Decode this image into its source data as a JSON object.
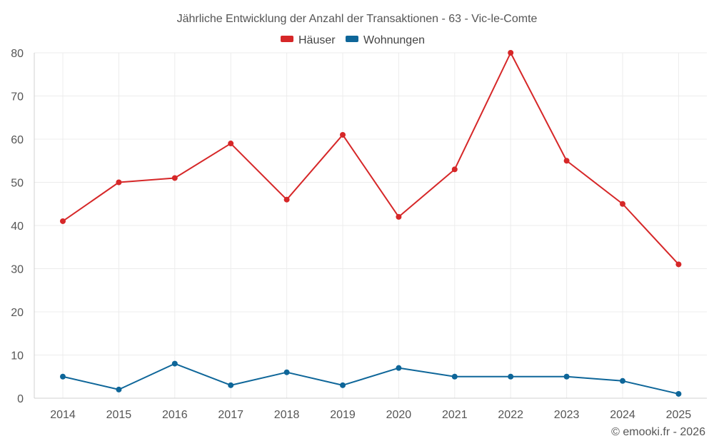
{
  "chart_data": {
    "type": "line",
    "title": "Jährliche Entwicklung der Anzahl der Transaktionen - 63 - Vic-le-Comte",
    "xlabel": "",
    "ylabel": "",
    "categories": [
      "2014",
      "2015",
      "2016",
      "2017",
      "2018",
      "2019",
      "2020",
      "2021",
      "2022",
      "2023",
      "2024",
      "2025"
    ],
    "ylim": [
      0,
      80
    ],
    "yticks": [
      0,
      10,
      20,
      30,
      40,
      50,
      60,
      70,
      80
    ],
    "grid": true,
    "legend_position": "top-center",
    "series": [
      {
        "name": "Häuser",
        "color": "#d62728",
        "values": [
          41,
          50,
          51,
          59,
          46,
          61,
          42,
          53,
          80,
          55,
          45,
          31
        ]
      },
      {
        "name": "Wohnungen",
        "color": "#0e6699",
        "values": [
          5,
          2,
          8,
          3,
          6,
          3,
          7,
          5,
          5,
          5,
          4,
          1
        ]
      }
    ]
  },
  "footer": {
    "credit": "© emooki.fr - 2026"
  }
}
